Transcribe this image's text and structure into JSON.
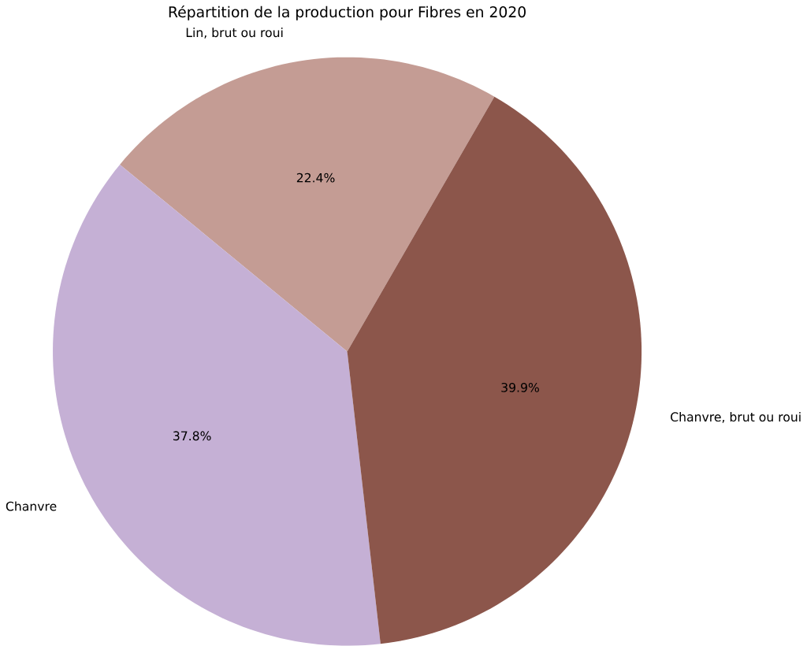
{
  "chart_data": {
    "type": "pie",
    "title": "Répartition de la production pour Fibres en 2020",
    "categories": [
      "Lin, brut ou roui",
      "Chanvre",
      "Chanvre, brut ou roui"
    ],
    "values": [
      22.4,
      37.8,
      39.9
    ],
    "colors": [
      "#c49c94",
      "#c5b0d5",
      "#8c564b"
    ],
    "value_labels": [
      "22.4%",
      "37.8%",
      "39.9%"
    ]
  }
}
